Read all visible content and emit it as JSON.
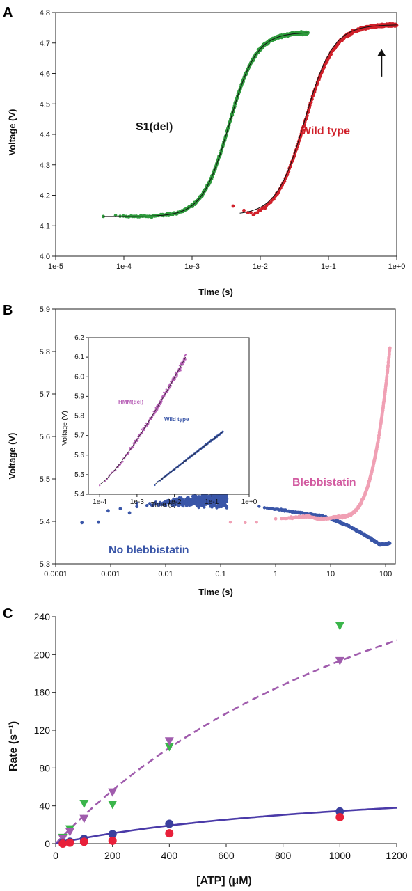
{
  "chart_data": [
    {
      "panel": "A",
      "type": "scatter",
      "xscale": "log",
      "xlim": [
        1e-05,
        1
      ],
      "ylim": [
        4.0,
        4.8
      ],
      "xticks": [
        "1e-5",
        "1e-4",
        "1e-3",
        "1e-2",
        "1e-1",
        "1e+0"
      ],
      "yticks": [
        "4.0",
        "4.1",
        "4.2",
        "4.3",
        "4.4",
        "4.5",
        "4.6",
        "4.7",
        "4.8"
      ],
      "xlabel": "Time (s)",
      "ylabel": "Voltage (V)",
      "annotations": [
        "S1(del)",
        "Wild type"
      ],
      "arrow_at": {
        "x": 0.6,
        "y_from": 4.59,
        "y_to": 4.68
      },
      "series": [
        {
          "name": "S1(del)",
          "color": "#2e9a3c",
          "sigmoid": {
            "y0": 4.13,
            "amp": 0.605,
            "x0": 0.0035,
            "k": 2.2
          },
          "xrange": [
            5e-05,
            0.05
          ]
        },
        {
          "name": "Wild type",
          "color": "#d0202a",
          "sigmoid": {
            "y0": 4.12,
            "amp": 0.64,
            "x0": 0.045,
            "k": 2.0
          },
          "xrange": [
            0.004,
            1.0
          ]
        }
      ]
    },
    {
      "panel": "B",
      "type": "scatter",
      "xscale": "log",
      "xlim": [
        0.0001,
        150
      ],
      "ylim": [
        5.3,
        5.9
      ],
      "xticks": [
        "0.0001",
        "0.001",
        "0.01",
        "0.1",
        "1",
        "10",
        "100"
      ],
      "yticks": [
        "5.3",
        "5.4",
        "5.5",
        "5.6",
        "5.7",
        "5.8",
        "5.9"
      ],
      "xlabel": "Time (s)",
      "ylabel": "Voltage (V)",
      "annotations": [
        "Blebbistatin",
        "No blebbistatin"
      ],
      "series": [
        {
          "name": "No blebbistatin",
          "color": "#3a56a8"
        },
        {
          "name": "Blebbistatin",
          "color": "#f0a0b4"
        }
      ],
      "inset": {
        "xscale": "log",
        "xlim": [
          5e-05,
          1
        ],
        "ylim": [
          5.4,
          6.2
        ],
        "xticks": [
          "1e-4",
          "1e-3",
          "1e-2",
          "1e-1",
          "1e+0"
        ],
        "yticks": [
          "5.4",
          "5.5",
          "5.6",
          "5.7",
          "5.8",
          "5.9",
          "6.0",
          "6.1",
          "6.2"
        ],
        "xlabel": "Time (s)",
        "ylabel": "Voltage (V)",
        "annotations": [
          "HMM(del)",
          "Wild type"
        ],
        "series": [
          {
            "name": "HMM(del)",
            "color": "#b75fb6",
            "x_from": 0.0001,
            "x_to": 0.02,
            "y_from": 5.45,
            "y_to": 6.1
          },
          {
            "name": "Wild type",
            "color": "#3a56a8",
            "x_from": 0.003,
            "x_to": 0.2,
            "y_from": 5.45,
            "y_to": 5.72
          }
        ]
      }
    },
    {
      "panel": "C",
      "type": "scatter",
      "xlim": [
        0,
        1200
      ],
      "ylim": [
        0,
        240
      ],
      "xticks": [
        "0",
        "200",
        "400",
        "600",
        "800",
        "1000",
        "1200"
      ],
      "yticks": [
        "0",
        "40",
        "80",
        "120",
        "160",
        "200",
        "240"
      ],
      "xlabel": "[ATP] (μM)",
      "ylabel": "Rate (s⁻¹)",
      "series": [
        {
          "name": "",
          "color": "#3ab54a",
          "marker": "triangle-down",
          "x": [
            25,
            50,
            100,
            200,
            400,
            1000
          ],
          "y": [
            6,
            15,
            42,
            41,
            102,
            230
          ]
        },
        {
          "name": "",
          "color": "#a05cad",
          "marker": "triangle-down",
          "x": [
            25,
            50,
            100,
            200,
            400,
            1000
          ],
          "y": [
            5,
            12,
            26,
            54,
            108,
            193
          ]
        },
        {
          "name": "",
          "color": "#3b3f9e",
          "marker": "circle",
          "x": [
            25,
            50,
            100,
            200,
            400,
            1000
          ],
          "y": [
            1,
            2,
            5,
            10,
            21,
            34
          ]
        },
        {
          "name": "",
          "color": "#e8203a",
          "marker": "circle",
          "x": [
            25,
            50,
            100,
            200,
            400,
            1000
          ],
          "y": [
            0,
            1,
            2,
            3,
            11,
            28
          ]
        }
      ],
      "fits": [
        {
          "name": "",
          "color": "#a05cad",
          "dash": true,
          "vmax": 491,
          "km": 1540
        },
        {
          "name": "",
          "color": "#4a3aa8",
          "dash": false,
          "vmax": 75,
          "km": 1170
        }
      ]
    }
  ]
}
